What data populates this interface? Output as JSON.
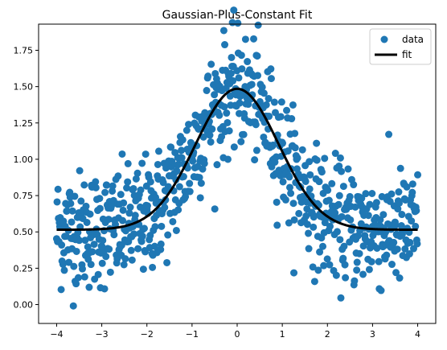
{
  "chart_data": {
    "type": "scatter",
    "title": "Gaussian-Plus-Constant Fit",
    "xlabel": "",
    "ylabel": "",
    "xlim": [
      -4.4,
      4.4
    ],
    "ylim": [
      -0.13,
      1.93
    ],
    "x_ticks": [
      -4,
      -3,
      -2,
      -1,
      0,
      1,
      2,
      3,
      4
    ],
    "y_ticks": [
      0.0,
      0.25,
      0.5,
      0.75,
      1.0,
      1.25,
      1.5,
      1.75
    ],
    "grid": false,
    "legend": {
      "placement": "top-right",
      "entries": [
        "data",
        "fit"
      ]
    },
    "series": [
      {
        "name": "data",
        "kind": "scatter",
        "color": "#1f77b4",
        "points": "800 noisy samples, x uniformly spaced on [-4, 4], y scattered around the fit curve (noise sd ~0.2)"
      },
      {
        "name": "fit",
        "kind": "line",
        "color": "#000000",
        "model": {
          "amplitude": 0.97,
          "center": 0.0,
          "sigma": 0.92,
          "offset": 0.515
        }
      }
    ]
  }
}
